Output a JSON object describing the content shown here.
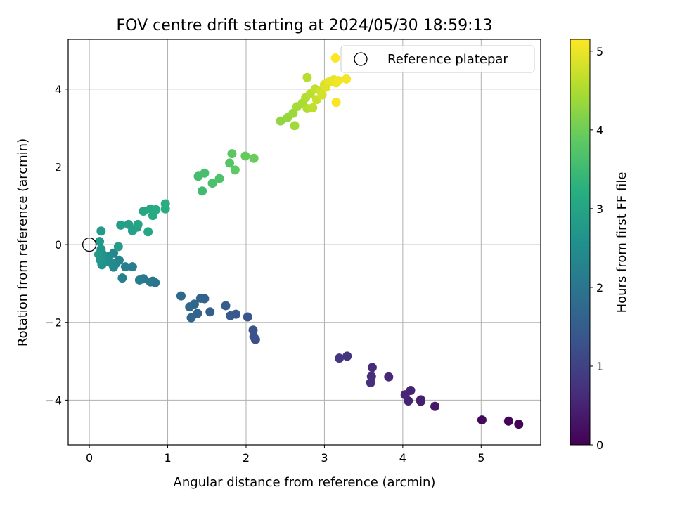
{
  "chart_data": {
    "type": "scatter",
    "title": "FOV centre drift starting at 2024/05/30 18:59:13",
    "xlabel": "Angular distance from reference (arcmin)",
    "ylabel": "Rotation from reference (arcmin)",
    "xlim": [
      -0.27,
      5.76
    ],
    "ylim": [
      -5.15,
      5.28
    ],
    "xticks": [
      0,
      1,
      2,
      3,
      4,
      5
    ],
    "yticks": [
      -4,
      -2,
      0,
      2,
      4
    ],
    "grid": true,
    "legend": {
      "placement": "top-right",
      "entries": [
        "Reference platepar"
      ]
    },
    "reference_point": {
      "x": 0,
      "y": 0
    },
    "colorbar": {
      "label": "Hours from first FF file",
      "range": [
        0,
        5.15
      ],
      "ticks": [
        0,
        1,
        2,
        3,
        4,
        5
      ],
      "colormap": "viridis"
    },
    "points": [
      {
        "x": 5.48,
        "y": -4.62,
        "c": 0.03
      },
      {
        "x": 5.35,
        "y": -4.54,
        "c": 0.06
      },
      {
        "x": 5.01,
        "y": -4.51,
        "c": 0.1
      },
      {
        "x": 4.41,
        "y": -4.16,
        "c": 0.35
      },
      {
        "x": 4.23,
        "y": -3.99,
        "c": 0.42
      },
      {
        "x": 4.23,
        "y": -4.03,
        "c": 0.46
      },
      {
        "x": 4.1,
        "y": -3.75,
        "c": 0.5
      },
      {
        "x": 4.07,
        "y": -4.02,
        "c": 0.52
      },
      {
        "x": 4.03,
        "y": -3.86,
        "c": 0.55
      },
      {
        "x": 3.82,
        "y": -3.4,
        "c": 0.6
      },
      {
        "x": 3.61,
        "y": -3.16,
        "c": 0.64
      },
      {
        "x": 3.6,
        "y": -3.39,
        "c": 0.67
      },
      {
        "x": 3.59,
        "y": -3.55,
        "c": 0.7
      },
      {
        "x": 3.29,
        "y": -2.87,
        "c": 0.8
      },
      {
        "x": 3.19,
        "y": -2.92,
        "c": 0.84
      },
      {
        "x": 2.12,
        "y": -2.44,
        "c": 1.25
      },
      {
        "x": 2.1,
        "y": -2.37,
        "c": 1.3
      },
      {
        "x": 2.09,
        "y": -2.2,
        "c": 1.35
      },
      {
        "x": 2.02,
        "y": -1.86,
        "c": 1.4
      },
      {
        "x": 1.87,
        "y": -1.79,
        "c": 1.45
      },
      {
        "x": 1.8,
        "y": -1.83,
        "c": 1.48
      },
      {
        "x": 1.74,
        "y": -1.57,
        "c": 1.52
      },
      {
        "x": 1.54,
        "y": -1.73,
        "c": 1.58
      },
      {
        "x": 1.47,
        "y": -1.39,
        "c": 1.62
      },
      {
        "x": 1.42,
        "y": -1.38,
        "c": 1.65
      },
      {
        "x": 1.38,
        "y": -1.77,
        "c": 1.68
      },
      {
        "x": 1.34,
        "y": -1.53,
        "c": 1.7
      },
      {
        "x": 1.3,
        "y": -1.88,
        "c": 1.72
      },
      {
        "x": 1.28,
        "y": -1.6,
        "c": 1.75
      },
      {
        "x": 1.17,
        "y": -1.32,
        "c": 1.8
      },
      {
        "x": 0.84,
        "y": -0.98,
        "c": 2.0
      },
      {
        "x": 0.81,
        "y": -0.94,
        "c": 2.03
      },
      {
        "x": 0.78,
        "y": -0.96,
        "c": 2.06
      },
      {
        "x": 0.69,
        "y": -0.88,
        "c": 2.1
      },
      {
        "x": 0.64,
        "y": -0.91,
        "c": 2.13
      },
      {
        "x": 0.55,
        "y": -0.57,
        "c": 2.18
      },
      {
        "x": 0.46,
        "y": -0.57,
        "c": 2.22
      },
      {
        "x": 0.42,
        "y": -0.86,
        "c": 2.25
      },
      {
        "x": 0.38,
        "y": -0.4,
        "c": 2.3
      },
      {
        "x": 0.34,
        "y": -0.48,
        "c": 2.34
      },
      {
        "x": 0.31,
        "y": -0.22,
        "c": 2.38
      },
      {
        "x": 0.31,
        "y": -0.58,
        "c": 2.42
      },
      {
        "x": 0.27,
        "y": -0.46,
        "c": 2.46
      },
      {
        "x": 0.25,
        "y": -0.3,
        "c": 2.5
      },
      {
        "x": 0.21,
        "y": -0.44,
        "c": 2.55
      },
      {
        "x": 0.18,
        "y": -0.34,
        "c": 2.58
      },
      {
        "x": 0.16,
        "y": -0.22,
        "c": 2.62
      },
      {
        "x": 0.16,
        "y": -0.52,
        "c": 2.64
      },
      {
        "x": 0.15,
        "y": -0.12,
        "c": 2.68
      },
      {
        "x": 0.14,
        "y": -0.39,
        "c": 2.7
      },
      {
        "x": 0.12,
        "y": -0.25,
        "c": 2.72
      },
      {
        "x": 0.13,
        "y": 0.08,
        "c": 2.78
      },
      {
        "x": 0.15,
        "y": 0.35,
        "c": 2.82
      },
      {
        "x": 0.37,
        "y": -0.05,
        "c": 2.85
      },
      {
        "x": 0.4,
        "y": 0.5,
        "c": 2.88
      },
      {
        "x": 0.5,
        "y": 0.52,
        "c": 2.92
      },
      {
        "x": 0.55,
        "y": 0.36,
        "c": 2.95
      },
      {
        "x": 0.61,
        "y": 0.45,
        "c": 2.98
      },
      {
        "x": 0.62,
        "y": 0.52,
        "c": 3.0
      },
      {
        "x": 0.69,
        "y": 0.86,
        "c": 3.05
      },
      {
        "x": 0.75,
        "y": 0.33,
        "c": 3.08
      },
      {
        "x": 0.78,
        "y": 0.92,
        "c": 3.12
      },
      {
        "x": 0.81,
        "y": 0.75,
        "c": 3.15
      },
      {
        "x": 0.85,
        "y": 0.9,
        "c": 3.18
      },
      {
        "x": 0.97,
        "y": 0.92,
        "c": 3.22
      },
      {
        "x": 0.97,
        "y": 1.05,
        "c": 3.25
      },
      {
        "x": 1.44,
        "y": 1.38,
        "c": 3.55
      },
      {
        "x": 1.39,
        "y": 1.76,
        "c": 3.58
      },
      {
        "x": 1.47,
        "y": 1.84,
        "c": 3.62
      },
      {
        "x": 1.57,
        "y": 1.58,
        "c": 3.66
      },
      {
        "x": 1.66,
        "y": 1.7,
        "c": 3.7
      },
      {
        "x": 1.79,
        "y": 2.1,
        "c": 3.8
      },
      {
        "x": 1.82,
        "y": 2.34,
        "c": 3.84
      },
      {
        "x": 1.86,
        "y": 1.92,
        "c": 3.88
      },
      {
        "x": 1.99,
        "y": 2.28,
        "c": 3.93
      },
      {
        "x": 2.1,
        "y": 2.22,
        "c": 3.97
      },
      {
        "x": 2.44,
        "y": 3.18,
        "c": 4.3
      },
      {
        "x": 2.53,
        "y": 3.27,
        "c": 4.34
      },
      {
        "x": 2.6,
        "y": 3.38,
        "c": 4.38
      },
      {
        "x": 2.62,
        "y": 3.06,
        "c": 4.42
      },
      {
        "x": 2.65,
        "y": 3.55,
        "c": 4.46
      },
      {
        "x": 2.72,
        "y": 3.64,
        "c": 4.5
      },
      {
        "x": 2.76,
        "y": 3.78,
        "c": 4.55
      },
      {
        "x": 2.78,
        "y": 3.5,
        "c": 4.58
      },
      {
        "x": 2.82,
        "y": 3.88,
        "c": 4.62
      },
      {
        "x": 2.85,
        "y": 3.52,
        "c": 4.66
      },
      {
        "x": 2.88,
        "y": 4.0,
        "c": 4.7
      },
      {
        "x": 2.9,
        "y": 3.73,
        "c": 4.74
      },
      {
        "x": 2.95,
        "y": 3.95,
        "c": 4.78
      },
      {
        "x": 2.97,
        "y": 3.85,
        "c": 4.82
      },
      {
        "x": 3.0,
        "y": 4.12,
        "c": 4.86
      },
      {
        "x": 3.02,
        "y": 4.05,
        "c": 4.9
      },
      {
        "x": 3.05,
        "y": 4.18,
        "c": 4.93
      },
      {
        "x": 3.08,
        "y": 4.2,
        "c": 4.96
      },
      {
        "x": 3.12,
        "y": 4.24,
        "c": 4.99
      },
      {
        "x": 3.15,
        "y": 4.16,
        "c": 5.02
      },
      {
        "x": 3.18,
        "y": 4.22,
        "c": 5.05
      },
      {
        "x": 3.28,
        "y": 4.26,
        "c": 5.08
      },
      {
        "x": 3.15,
        "y": 3.66,
        "c": 5.1
      },
      {
        "x": 3.14,
        "y": 4.8,
        "c": 5.13
      },
      {
        "x": 2.78,
        "y": 4.3,
        "c": 4.6
      }
    ]
  }
}
